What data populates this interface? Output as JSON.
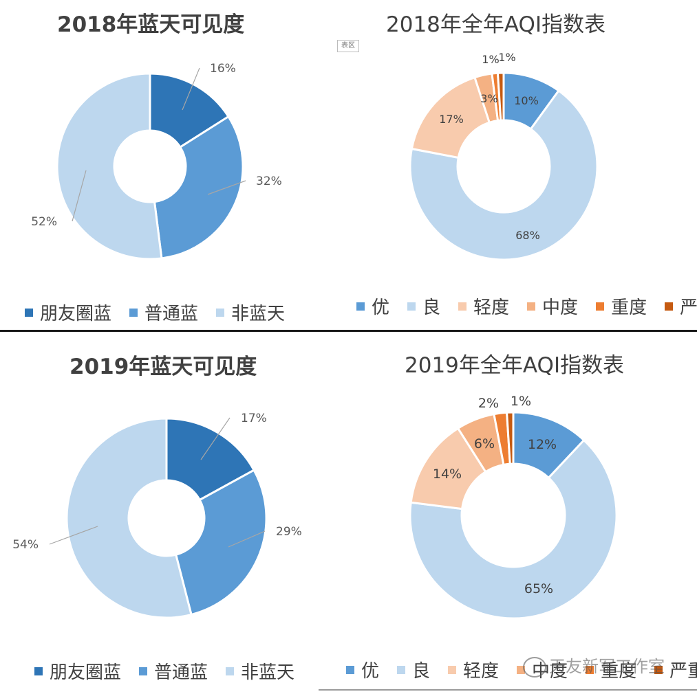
{
  "chart_data": [
    {
      "type": "pie",
      "subtype": "donut",
      "title": "2018年蓝天可见度",
      "categories": [
        "朋友圈蓝",
        "普通蓝",
        "非蓝天"
      ],
      "values": [
        16,
        32,
        52
      ],
      "labels": [
        "16%",
        "32%",
        "52%"
      ],
      "colors": [
        "#2e75b6",
        "#5b9bd5",
        "#bdd7ee"
      ],
      "legend_position": "bottom"
    },
    {
      "type": "pie",
      "subtype": "donut",
      "title": "2018年全年AQI指数表",
      "categories": [
        "优",
        "良",
        "轻度",
        "中度",
        "重度",
        "严重"
      ],
      "values": [
        10,
        68,
        17,
        3,
        1,
        1
      ],
      "labels": [
        "10%",
        "68%",
        "17%",
        "3%",
        "1%",
        "1%"
      ],
      "colors": [
        "#5b9bd5",
        "#bdd7ee",
        "#f8cbad",
        "#f4b183",
        "#ed7d31",
        "#c55a11"
      ],
      "legend_position": "bottom"
    },
    {
      "type": "pie",
      "subtype": "donut",
      "title": "2019年蓝天可见度",
      "categories": [
        "朋友圈蓝",
        "普通蓝",
        "非蓝天"
      ],
      "values": [
        17,
        29,
        54
      ],
      "labels": [
        "17%",
        "29%",
        "54%"
      ],
      "colors": [
        "#2e75b6",
        "#5b9bd5",
        "#bdd7ee"
      ],
      "legend_position": "bottom"
    },
    {
      "type": "pie",
      "subtype": "donut",
      "title": "2019年全年AQI指数表",
      "categories": [
        "优",
        "良",
        "轻度",
        "中度",
        "重度",
        "严重"
      ],
      "values": [
        12,
        65,
        14,
        6,
        2,
        1
      ],
      "labels": [
        "12%",
        "65%",
        "14%",
        "6%",
        "2%",
        "1%"
      ],
      "colors": [
        "#5b9bd5",
        "#bdd7ee",
        "#f8cbad",
        "#f4b183",
        "#ed7d31",
        "#c55a11"
      ],
      "legend_position": "bottom"
    }
  ],
  "overlay": {
    "tag_text": "表区",
    "watermark_text": "天友新军工作室"
  }
}
